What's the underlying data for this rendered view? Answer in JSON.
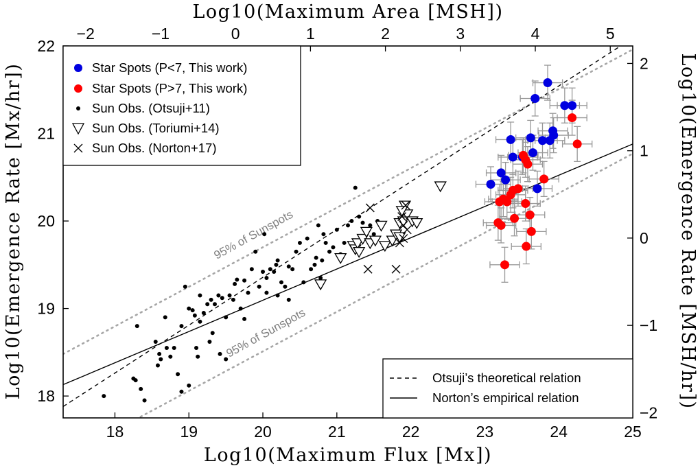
{
  "chart_data": {
    "type": "scatter",
    "xlabel": "Log10(Maximum Flux [Mx])",
    "ylabel": "Log10(Emergence Rate [Mx/hr])",
    "x2label": "Log10(Maximum Area [MSH])",
    "y2label": "Log10(Emergence Rate [MSH/hr])",
    "xlim": [
      17.3,
      25.0
    ],
    "ylim": [
      17.75,
      22.0
    ],
    "x2lim": [
      -2.3,
      5.3
    ],
    "y2lim": [
      -2.06,
      2.2
    ],
    "xticks": [
      18,
      19,
      20,
      21,
      22,
      23,
      24,
      25
    ],
    "yticks": [
      18,
      19,
      20,
      21,
      22
    ],
    "x2ticks": [
      -2,
      -1,
      0,
      1,
      2,
      3,
      4,
      5
    ],
    "y2ticks": [
      -2,
      -1,
      0,
      1,
      2
    ],
    "xtick_labels": [
      "18",
      "19",
      "20",
      "21",
      "22",
      "23",
      "24",
      "25"
    ],
    "ytick_labels": [
      "18",
      "19",
      "20",
      "21",
      "22"
    ],
    "x2tick_labels": [
      "−2",
      "−1",
      "0",
      "1",
      "2",
      "3",
      "4",
      "5"
    ],
    "y2tick_labels": [
      "−2",
      "−1",
      "0",
      "1",
      "2"
    ],
    "colors": {
      "blue": "#0000e0",
      "red": "#ff0000",
      "errorbar": "#999999",
      "band": "#a6a6a6",
      "black": "#000000"
    },
    "legend": {
      "position": "top-left",
      "entries": [
        "Star Spots (P<7, This work)",
        "Star Spots (P>7, This work)",
        "Sun Obs. (Otsuji+11)",
        "Sun Obs. (Toriumi+14)",
        "Sun Obs. (Norton+17)"
      ]
    },
    "legend2": {
      "position": "bottom-right",
      "entries": [
        "Otsuji’s theoretical relation",
        "Norton’s empirical relation"
      ]
    },
    "annotations": [
      "95% of Sunspots",
      "95% of Sunspots"
    ],
    "lines": {
      "otsuji": {
        "name": "Otsuji’s theoretical relation",
        "x": [
          17.3,
          25.0
        ],
        "y": [
          17.88,
          22.09
        ],
        "style": "dashed"
      },
      "norton": {
        "name": "Norton’s empirical relation",
        "x": [
          17.3,
          25.0
        ],
        "y": [
          18.13,
          20.88
        ],
        "style": "solid"
      },
      "band_upper": {
        "name": "95% of Sunspots",
        "x": [
          17.3,
          25.0
        ],
        "y": [
          18.48,
          21.96
        ],
        "style": "dotted"
      },
      "band_lower": {
        "name": "95% of Sunspots",
        "x": [
          17.3,
          25.0
        ],
        "y": [
          17.29,
          20.77
        ],
        "style": "dotted"
      }
    },
    "series": [
      {
        "name": "Star Spots (P<7, This work)",
        "marker": "circle",
        "color": "#0000e0",
        "x_err": 0.2,
        "y_err": 0.2,
        "points": [
          [
            23.85,
            21.58
          ],
          [
            23.68,
            21.4
          ],
          [
            24.08,
            21.32
          ],
          [
            24.18,
            21.32
          ],
          [
            23.92,
            21.03
          ],
          [
            23.93,
            20.98
          ],
          [
            23.88,
            20.92
          ],
          [
            23.62,
            20.95
          ],
          [
            23.78,
            20.92
          ],
          [
            23.35,
            20.93
          ],
          [
            23.65,
            20.78
          ],
          [
            23.38,
            20.73
          ],
          [
            23.51,
            20.73
          ],
          [
            23.22,
            20.55
          ],
          [
            23.28,
            20.47
          ],
          [
            23.08,
            20.42
          ],
          [
            23.71,
            20.37
          ]
        ]
      },
      {
        "name": "Star Spots (P>7, This work)",
        "marker": "circle",
        "color": "#ff0000",
        "x_err": 0.2,
        "y_err": 0.2,
        "points": [
          [
            24.18,
            21.18
          ],
          [
            24.25,
            20.88
          ],
          [
            23.52,
            20.75
          ],
          [
            23.55,
            20.7
          ],
          [
            23.58,
            20.65
          ],
          [
            23.8,
            20.48
          ],
          [
            23.45,
            20.37
          ],
          [
            23.38,
            20.35
          ],
          [
            23.35,
            20.3
          ],
          [
            23.25,
            20.25
          ],
          [
            23.2,
            20.22
          ],
          [
            23.3,
            20.22
          ],
          [
            23.55,
            20.2
          ],
          [
            23.61,
            20.07
          ],
          [
            23.4,
            20.03
          ],
          [
            23.18,
            19.98
          ],
          [
            23.22,
            19.95
          ],
          [
            23.63,
            19.88
          ],
          [
            23.56,
            19.71
          ],
          [
            23.27,
            19.5
          ]
        ]
      },
      {
        "name": "Sun Obs. (Otsuji+11)",
        "marker": "dot",
        "color": "#000000",
        "points": [
          [
            17.85,
            18.0
          ],
          [
            18.3,
            18.8
          ],
          [
            18.4,
            17.95
          ],
          [
            18.35,
            18.08
          ],
          [
            18.25,
            18.2
          ],
          [
            18.55,
            18.62
          ],
          [
            18.6,
            18.48
          ],
          [
            18.62,
            18.42
          ],
          [
            18.58,
            18.35
          ],
          [
            18.7,
            18.55
          ],
          [
            18.68,
            18.9
          ],
          [
            18.75,
            18.45
          ],
          [
            18.8,
            18.55
          ],
          [
            18.85,
            18.25
          ],
          [
            18.9,
            18.8
          ],
          [
            18.9,
            18.05
          ],
          [
            18.95,
            19.25
          ],
          [
            19.0,
            19.0
          ],
          [
            19.05,
            18.98
          ],
          [
            19.08,
            18.92
          ],
          [
            19.1,
            18.55
          ],
          [
            19.12,
            18.45
          ],
          [
            19.15,
            19.15
          ],
          [
            19.2,
            18.95
          ],
          [
            19.25,
            19.05
          ],
          [
            19.3,
            19.1
          ],
          [
            19.32,
            18.72
          ],
          [
            19.35,
            19.05
          ],
          [
            19.4,
            19.15
          ],
          [
            19.42,
            18.48
          ],
          [
            19.45,
            19.12
          ],
          [
            19.5,
            18.9
          ],
          [
            19.55,
            19.15
          ],
          [
            19.6,
            19.1
          ],
          [
            19.62,
            19.28
          ],
          [
            19.65,
            19.33
          ],
          [
            19.7,
            19.0
          ],
          [
            19.75,
            18.88
          ],
          [
            19.8,
            19.18
          ],
          [
            19.85,
            19.45
          ],
          [
            19.9,
            19.65
          ],
          [
            19.95,
            19.25
          ],
          [
            20.0,
            19.42
          ],
          [
            20.02,
            19.85
          ],
          [
            20.05,
            19.35
          ],
          [
            20.1,
            19.45
          ],
          [
            20.15,
            19.42
          ],
          [
            20.18,
            19.5
          ],
          [
            20.2,
            19.55
          ],
          [
            20.25,
            19.3
          ],
          [
            20.3,
            19.25
          ],
          [
            20.35,
            19.1
          ],
          [
            20.4,
            19.45
          ],
          [
            20.45,
            19.65
          ],
          [
            20.5,
            19.75
          ],
          [
            20.55,
            19.3
          ],
          [
            20.6,
            19.8
          ],
          [
            20.65,
            19.45
          ],
          [
            20.7,
            19.5
          ],
          [
            20.72,
            19.58
          ],
          [
            20.75,
            19.95
          ],
          [
            20.78,
            19.35
          ],
          [
            20.8,
            19.55
          ],
          [
            20.82,
            19.85
          ],
          [
            20.85,
            19.75
          ],
          [
            20.9,
            19.65
          ],
          [
            20.95,
            19.7
          ],
          [
            21.0,
            19.9
          ],
          [
            21.05,
            19.62
          ],
          [
            21.1,
            19.75
          ],
          [
            21.15,
            19.95
          ],
          [
            21.2,
            20.0
          ],
          [
            21.25,
            20.38
          ],
          [
            21.3,
            20.05
          ],
          [
            21.35,
            19.98
          ],
          [
            21.4,
            19.88
          ],
          [
            21.45,
            19.95
          ],
          [
            21.5,
            19.85
          ],
          [
            21.55,
            20.0
          ],
          [
            19.28,
            18.62
          ],
          [
            18.28,
            18.18
          ],
          [
            19.0,
            18.12
          ],
          [
            19.5,
            18.42
          ],
          [
            20.2,
            19.15
          ],
          [
            20.35,
            19.48
          ],
          [
            19.15,
            18.85
          ],
          [
            20.05,
            19.18
          ],
          [
            19.75,
            19.32
          ]
        ]
      },
      {
        "name": "Sun Obs. (Toriumi+14)",
        "marker": "triangle-down",
        "color": "#000000",
        "points": [
          [
            20.78,
            19.28
          ],
          [
            21.05,
            19.58
          ],
          [
            21.22,
            19.72
          ],
          [
            21.25,
            19.68
          ],
          [
            21.28,
            19.75
          ],
          [
            21.3,
            19.65
          ],
          [
            21.35,
            19.8
          ],
          [
            21.4,
            19.88
          ],
          [
            21.45,
            19.75
          ],
          [
            21.52,
            19.78
          ],
          [
            21.6,
            19.95
          ],
          [
            21.65,
            19.72
          ],
          [
            21.75,
            19.78
          ],
          [
            21.8,
            19.85
          ],
          [
            21.85,
            19.98
          ],
          [
            21.9,
            20.0
          ],
          [
            21.95,
            20.08
          ],
          [
            22.02,
            20.0
          ],
          [
            21.92,
            20.18
          ],
          [
            21.88,
            20.12
          ],
          [
            22.08,
            19.98
          ],
          [
            22.4,
            20.4
          ],
          [
            21.85,
            19.82
          ]
        ]
      },
      {
        "name": "Sun Obs. (Norton+17)",
        "marker": "x",
        "color": "#000000",
        "points": [
          [
            21.45,
            20.15
          ],
          [
            21.42,
            19.45
          ],
          [
            21.8,
            19.45
          ],
          [
            21.85,
            19.75
          ],
          [
            21.9,
            19.8
          ],
          [
            21.9,
            19.95
          ],
          [
            21.95,
            19.9
          ],
          [
            21.88,
            20.05
          ],
          [
            21.93,
            20.18
          ]
        ]
      }
    ]
  }
}
